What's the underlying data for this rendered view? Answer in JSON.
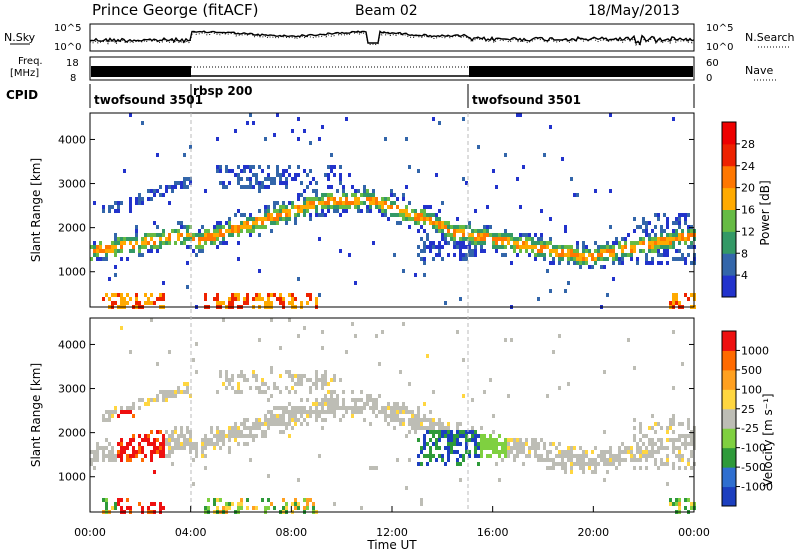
{
  "header": {
    "title": "Prince George (fitACF)",
    "beam": "Beam 02",
    "date": "18/May/2013"
  },
  "top_panels": {
    "nsky_label": "N.Sky",
    "nsearch_label": "N.Search",
    "freq_label_1": "Freq.",
    "freq_label_2": "[MHz]",
    "nave_label": "Nave",
    "log_tick_hi": "10^5",
    "log_tick_lo": "10^0",
    "freq_tick_hi": "18",
    "freq_tick_lo": "8",
    "nave_tick_hi": "60",
    "nave_tick_lo": "0",
    "cpid_label": "CPID",
    "cpid_segments": [
      {
        "label": "twofsound 3501",
        "start_h": 0,
        "end_h": 4
      },
      {
        "label": "rbsp 200",
        "start_h": 4,
        "end_h": 15
      },
      {
        "label": "twofsound 3501",
        "start_h": 15,
        "end_h": 24
      }
    ]
  },
  "chart_data": [
    {
      "type": "heatmap",
      "name": "power-panel",
      "ylabel": "Slant Range [km]",
      "ylim": [
        200,
        4600
      ],
      "yticks": [
        "1000",
        "2000",
        "3000",
        "4000"
      ],
      "colorbar_label": "Power [dB]",
      "colorbar_ticks": [
        "4",
        "8",
        "12",
        "16",
        "20",
        "24",
        "28"
      ],
      "colors": [
        "#2233cc",
        "#3366aa",
        "#339966",
        "#66bb44",
        "#ffaa00",
        "#ff7700",
        "#ee2200",
        "#ee0000"
      ]
    },
    {
      "type": "heatmap",
      "name": "velocity-panel",
      "ylabel": "Slant Range [km]",
      "xlabel": "Time UT",
      "ylim": [
        200,
        4600
      ],
      "yticks": [
        "1000",
        "2000",
        "3000",
        "4000"
      ],
      "xlim": [
        0,
        24
      ],
      "xticks": [
        "00:00",
        "04:00",
        "08:00",
        "12:00",
        "16:00",
        "20:00",
        "00:00"
      ],
      "colorbar_label": "Velocity [m s⁻¹]",
      "colorbar_ticks": [
        "1000",
        "500",
        "100",
        "25",
        "-25",
        "-100",
        "-500",
        "-1000"
      ],
      "colors": [
        "#1c3fbf",
        "#2f6fd0",
        "#2e9a3a",
        "#7fd040",
        "#bdbdb5",
        "#ffd640",
        "#ffa020",
        "#ff6a00",
        "#ee1010"
      ]
    }
  ]
}
